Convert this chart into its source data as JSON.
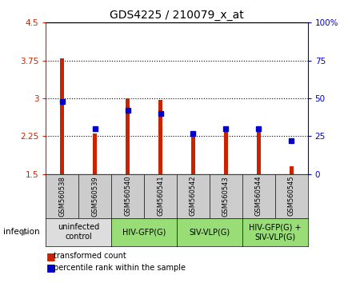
{
  "title": "GDS4225 / 210079_x_at",
  "samples": [
    "GSM560538",
    "GSM560539",
    "GSM560540",
    "GSM560541",
    "GSM560542",
    "GSM560543",
    "GSM560544",
    "GSM560545"
  ],
  "transformed_counts": [
    3.8,
    2.3,
    3.0,
    2.97,
    2.25,
    2.38,
    2.4,
    1.65
  ],
  "percentile_ranks": [
    48,
    30,
    42,
    40,
    27,
    30,
    30,
    22
  ],
  "ylim_left": [
    1.5,
    4.5
  ],
  "ylim_right": [
    0,
    100
  ],
  "yticks_left": [
    1.5,
    2.25,
    3.0,
    3.75,
    4.5
  ],
  "yticks_right": [
    0,
    25,
    50,
    75,
    100
  ],
  "ytick_labels_left": [
    "1.5",
    "2.25",
    "3",
    "3.75",
    "4.5"
  ],
  "ytick_labels_right": [
    "0",
    "25",
    "50",
    "75",
    "100%"
  ],
  "bar_color": "#cc2200",
  "dot_color": "#0000cc",
  "groups": [
    {
      "label": "uninfected\ncontrol",
      "start": 0,
      "end": 2,
      "color": "#dddddd"
    },
    {
      "label": "HIV-GFP(G)",
      "start": 2,
      "end": 4,
      "color": "#99dd77"
    },
    {
      "label": "SIV-VLP(G)",
      "start": 4,
      "end": 6,
      "color": "#99dd77"
    },
    {
      "label": "HIV-GFP(G) +\nSIV-VLP(G)",
      "start": 6,
      "end": 8,
      "color": "#99dd77"
    }
  ],
  "infection_label": "infection",
  "legend_items": [
    "transformed count",
    "percentile rank within the sample"
  ],
  "baseline": 1.5,
  "bg_color": "#ffffff",
  "plot_bg": "#ffffff",
  "axis_color_left": "#cc2200",
  "axis_color_right": "#0000cc",
  "bar_width": 0.12,
  "dot_size": 4,
  "grid_linestyle": ":",
  "grid_linewidth": 0.8,
  "tick_fontsize": 7.5,
  "title_fontsize": 10,
  "sample_fontsize": 6.0,
  "group_fontsize": 7.0,
  "legend_fontsize": 7.0
}
